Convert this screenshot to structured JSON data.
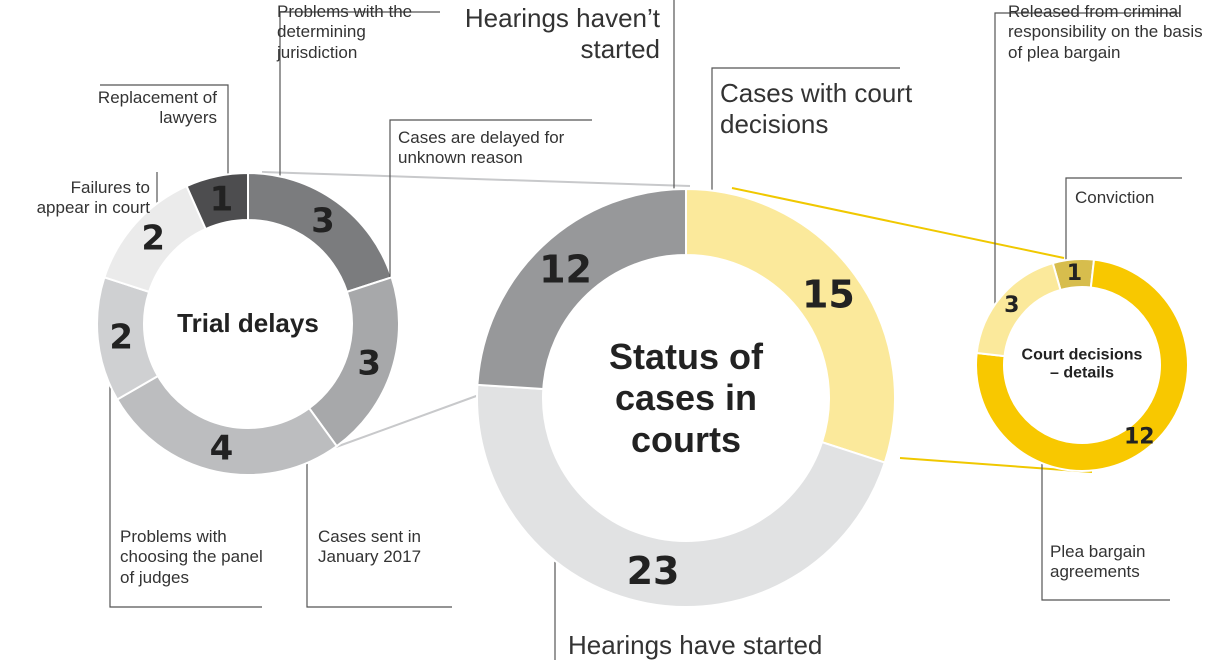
{
  "chart_data": [
    {
      "type": "pie",
      "title": "Trial delays",
      "categories": [
        "Problems with the determining jurisdiction",
        "Cases are delayed for unknown reason",
        "Cases sent in January 2017",
        "Problems with choosing the panel of judges",
        "Failures to appear in court",
        "Replacement of lawyers"
      ],
      "values": [
        3,
        3,
        4,
        2,
        2,
        1
      ],
      "colors": [
        "#7b7c7e",
        "#a7a8aa",
        "#bcbdbf",
        "#cfd0d2",
        "#ebebeb",
        "#4d4d4f"
      ]
    },
    {
      "type": "pie",
      "title": "Status of cases in courts",
      "categories": [
        "Cases with court decisions",
        "Hearings have started",
        "Hearings haven’t started"
      ],
      "values": [
        15,
        23,
        12
      ],
      "colors": [
        "#fbe99b",
        "#e1e2e3",
        "#97989a"
      ]
    },
    {
      "type": "pie",
      "title": "Court decisions – details",
      "categories": [
        "Conviction",
        "Plea bargain agreements",
        "Released from criminal responsibility on the basis of plea bargain"
      ],
      "values": [
        1,
        12,
        3
      ],
      "colors": [
        "#d7bd4d",
        "#f8c800",
        "#fbe99b"
      ]
    }
  ]
}
